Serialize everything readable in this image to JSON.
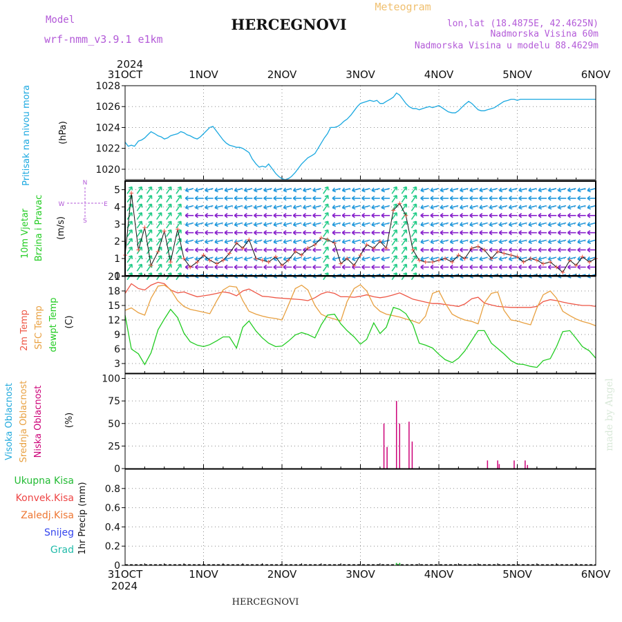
{
  "header": {
    "model_label": "Model",
    "model_name": "wrf-nmm_v3.9.1 e1km",
    "title": "HERCEGNOVI",
    "meteogram_label": "Meteogram",
    "lonlat": "lon,lat (18.4875E, 42.4625N)",
    "altitude": "Nadmorska Visina 60m",
    "model_altitude": "Nadmorska Visina u modelu 88.4629m"
  },
  "footer": {
    "station": "HERCEGNOVI",
    "watermark": "made by Angel"
  },
  "time_axis": {
    "year": "2024",
    "days": [
      "31OCT",
      "1NOV",
      "2NOV",
      "3NOV",
      "4NOV",
      "5NOV",
      "6NOV"
    ]
  },
  "colors": {
    "pressure": "#1aa8e0",
    "temp2m": "#ee5544",
    "sfc": "#e8a040",
    "dew": "#22cc22",
    "wind_calm": "#8822cc",
    "wind_light": "#2299dd",
    "wind_mod": "#22cc88",
    "cloud_low": "#cc0077",
    "cloud_mid": "#e8a040",
    "cloud_high": "#22aadd"
  },
  "chart_data": [
    {
      "type": "line",
      "panel": "pressure",
      "title": "",
      "ylabel_name": "Pritisak na nivou mora",
      "ylabel_unit": "(hPa)",
      "ylim": [
        1019,
        1028
      ],
      "yticks": [
        1020,
        1022,
        1024,
        1026,
        1028
      ],
      "x": [
        0,
        0.04,
        0.08,
        0.12,
        0.17,
        0.21,
        0.25,
        0.29,
        0.33,
        0.38,
        0.42,
        0.46,
        0.5,
        0.54,
        0.58,
        0.62,
        0.67,
        0.71,
        0.75,
        0.79,
        0.83,
        0.88,
        0.92,
        0.96,
        1.0,
        1.04,
        1.08,
        1.12,
        1.17,
        1.21,
        1.25,
        1.29,
        1.33,
        1.38,
        1.42,
        1.46,
        1.5,
        1.54,
        1.58,
        1.62,
        1.67,
        1.71,
        1.75,
        1.79,
        1.83,
        1.88,
        1.92,
        1.96,
        2.0,
        2.04,
        2.08,
        2.12,
        2.17,
        2.21,
        2.25,
        2.29,
        2.33,
        2.38,
        2.42,
        2.46,
        2.5,
        2.54,
        2.58,
        2.62,
        2.67,
        2.71,
        2.75,
        2.79,
        2.83,
        2.88,
        2.92,
        2.96,
        3.0,
        3.04,
        3.08,
        3.12,
        3.17,
        3.21,
        3.25,
        3.29,
        3.33,
        3.38,
        3.42,
        3.46,
        3.5,
        3.54,
        3.58,
        3.62,
        3.67,
        3.71,
        3.75,
        3.79,
        3.83,
        3.88,
        3.92,
        3.96,
        4.0,
        4.04,
        4.08,
        4.12,
        4.17,
        4.21,
        4.25,
        4.29,
        4.33,
        4.38,
        4.42,
        4.46,
        4.5,
        4.54,
        4.58,
        4.62,
        4.67,
        4.71,
        4.75,
        4.79,
        4.83,
        4.88,
        4.92,
        4.96,
        5.0,
        5.04,
        5.08,
        5.12,
        5.17,
        5.21,
        5.25,
        5.29,
        5.33,
        5.38,
        5.42,
        5.46,
        5.5,
        5.54,
        5.58,
        5.62,
        5.67,
        5.71,
        5.75,
        5.79,
        5.83,
        5.88,
        5.92,
        5.96,
        6.0
      ],
      "series": [
        {
          "values": [
            1022.6,
            1022.2,
            1022.3,
            1022.2,
            1022.7,
            1022.8,
            1023.0,
            1023.3,
            1023.6,
            1023.4,
            1023.2,
            1023.1,
            1022.9,
            1023.0,
            1023.2,
            1023.3,
            1023.4,
            1023.6,
            1023.5,
            1023.3,
            1023.2,
            1023.0,
            1022.9,
            1023.1,
            1023.4,
            1023.7,
            1024.0,
            1024.1,
            1023.6,
            1023.2,
            1022.8,
            1022.5,
            1022.3,
            1022.2,
            1022.1,
            1022.1,
            1022.0,
            1021.8,
            1021.6,
            1021.0,
            1020.5,
            1020.2,
            1020.3,
            1020.2,
            1020.5,
            1020.0,
            1019.6,
            1019.3,
            1019.1,
            1019.0,
            1019.1,
            1019.3,
            1019.7,
            1020.1,
            1020.5,
            1020.8,
            1021.1,
            1021.3,
            1021.5,
            1022.0,
            1022.5,
            1023.0,
            1023.4,
            1024.0,
            1024.0,
            1024.1,
            1024.3,
            1024.6,
            1024.8,
            1025.2,
            1025.6,
            1026.0,
            1026.3,
            1026.4,
            1026.5,
            1026.6,
            1026.5,
            1026.6,
            1026.3,
            1026.3,
            1026.5,
            1026.7,
            1026.9,
            1027.3,
            1027.1,
            1026.7,
            1026.3,
            1026.0,
            1025.8,
            1025.8,
            1025.7,
            1025.8,
            1025.9,
            1026.0,
            1025.9,
            1026.0,
            1026.1,
            1025.9,
            1025.7,
            1025.5,
            1025.4,
            1025.4,
            1025.6,
            1025.9,
            1026.2,
            1026.5,
            1026.3,
            1026.0,
            1025.7,
            1025.6,
            1025.6,
            1025.7,
            1025.8,
            1025.9,
            1026.1,
            1026.3,
            1026.5,
            1026.6,
            1026.7,
            1026.7,
            1026.6,
            1026.7,
            1026.7,
            1026.7,
            1026.7,
            1026.7,
            1026.7,
            1026.7,
            1026.7,
            1026.7,
            1026.7,
            1026.7,
            1026.7,
            1026.7,
            1026.7,
            1026.7,
            1026.7,
            1026.7,
            1026.7,
            1026.7,
            1026.7,
            1026.7,
            1026.7,
            1026.7,
            1026.7
          ]
        }
      ]
    },
    {
      "type": "scatter",
      "panel": "wind",
      "title": "",
      "ylabel_name": "10m Vjetar",
      "ylabel_name2": "Brzina i Pravac",
      "ylabel_unit": "(m/s)",
      "compass": {
        "n": "N",
        "s": "S",
        "w": "W",
        "e": "E"
      },
      "ylim": [
        0,
        5.5
      ],
      "yticks": [
        0,
        1,
        2,
        3,
        4,
        5
      ],
      "x": [
        0,
        0.08,
        0.17,
        0.25,
        0.33,
        0.42,
        0.5,
        0.58,
        0.67,
        0.75,
        0.83,
        0.92,
        1.0,
        1.08,
        1.17,
        1.25,
        1.33,
        1.42,
        1.5,
        1.58,
        1.67,
        1.75,
        1.83,
        1.92,
        2.0,
        2.08,
        2.17,
        2.25,
        2.33,
        2.42,
        2.5,
        2.58,
        2.67,
        2.75,
        2.83,
        2.92,
        3.0,
        3.08,
        3.17,
        3.25,
        3.33,
        3.42,
        3.5,
        3.58,
        3.67,
        3.75,
        3.83,
        3.92,
        4.0,
        4.08,
        4.17,
        4.25,
        4.33,
        4.42,
        4.5,
        4.58,
        4.67,
        4.75,
        4.83,
        4.92,
        5.0,
        5.08,
        5.17,
        5.25,
        5.33,
        5.42,
        5.5,
        5.58,
        5.67,
        5.75,
        5.83,
        5.92,
        6.0
      ],
      "series": [
        {
          "values": [
            1.2,
            4.8,
            1.5,
            2.8,
            0.6,
            1.4,
            2.6,
            0.8,
            2.7,
            1.0,
            0.5,
            0.8,
            1.2,
            0.9,
            0.7,
            0.9,
            1.3,
            1.9,
            1.6,
            2.1,
            1.0,
            0.9,
            0.8,
            1.1,
            0.6,
            0.9,
            1.4,
            1.2,
            1.6,
            1.8,
            2.2,
            2.1,
            1.9,
            0.7,
            1.0,
            0.6,
            1.2,
            1.8,
            1.6,
            2.0,
            1.6,
            3.8,
            4.2,
            3.5,
            1.5,
            0.9,
            0.8,
            0.8,
            0.9,
            1.0,
            0.8,
            1.2,
            1.0,
            1.6,
            1.7,
            1.5,
            1.0,
            1.4,
            1.3,
            1.2,
            1.1,
            0.8,
            1.0,
            0.9,
            0.7,
            0.8,
            0.5,
            0.2,
            0.9,
            0.6,
            1.1,
            0.8,
            1.0
          ]
        }
      ]
    },
    {
      "type": "line",
      "panel": "temperature",
      "title": "",
      "ylabels": [
        "2m Temp",
        "SFC Temp",
        "dewpt Temp"
      ],
      "ylabel_unit": "(C)",
      "ylim": [
        1,
        21
      ],
      "yticks": [
        3,
        6,
        9,
        12,
        15,
        18,
        21
      ],
      "x": [
        0,
        0.08,
        0.17,
        0.25,
        0.33,
        0.42,
        0.5,
        0.58,
        0.67,
        0.75,
        0.83,
        0.92,
        1.0,
        1.08,
        1.17,
        1.25,
        1.33,
        1.42,
        1.5,
        1.58,
        1.67,
        1.75,
        1.83,
        1.92,
        2.0,
        2.08,
        2.17,
        2.25,
        2.33,
        2.42,
        2.5,
        2.58,
        2.67,
        2.75,
        2.83,
        2.92,
        3.0,
        3.08,
        3.17,
        3.25,
        3.33,
        3.42,
        3.5,
        3.58,
        3.67,
        3.75,
        3.83,
        3.92,
        4.0,
        4.08,
        4.17,
        4.25,
        4.33,
        4.42,
        4.5,
        4.58,
        4.67,
        4.75,
        4.83,
        4.92,
        5.0,
        5.08,
        5.17,
        5.25,
        5.33,
        5.42,
        5.5,
        5.58,
        5.67,
        5.75,
        5.83,
        5.92,
        6.0
      ],
      "series": [
        {
          "name": "2m Temp",
          "values": [
            17.5,
            19.5,
            18.5,
            18.2,
            19.2,
            19.8,
            19.5,
            18.2,
            17.6,
            17.8,
            17.3,
            16.8,
            17.0,
            17.2,
            17.5,
            17.8,
            17.6,
            17.0,
            18.0,
            18.4,
            17.6,
            16.9,
            16.8,
            16.6,
            16.5,
            16.4,
            16.3,
            16.2,
            16.0,
            16.6,
            17.4,
            17.8,
            17.5,
            16.8,
            16.8,
            16.7,
            16.9,
            17.2,
            16.8,
            16.6,
            16.8,
            17.2,
            17.6,
            17.0,
            16.3,
            16.0,
            15.7,
            15.4,
            15.4,
            15.2,
            15.0,
            14.8,
            15.3,
            16.4,
            16.7,
            15.5,
            15.1,
            14.8,
            14.7,
            14.6,
            14.6,
            14.6,
            14.6,
            14.8,
            15.8,
            16.2,
            16.0,
            15.7,
            15.4,
            15.2,
            15.0,
            15.0,
            14.8
          ]
        },
        {
          "name": "SFC Temp",
          "values": [
            14.0,
            14.5,
            13.5,
            13.0,
            16.5,
            19.0,
            19.2,
            18.3,
            16.0,
            14.8,
            14.2,
            13.9,
            13.6,
            13.3,
            16.0,
            18.2,
            19.0,
            18.8,
            16.0,
            13.8,
            13.2,
            12.8,
            12.5,
            12.3,
            12.0,
            15.0,
            18.5,
            19.2,
            18.2,
            15.0,
            13.2,
            12.6,
            12.2,
            11.8,
            15.8,
            18.5,
            19.3,
            18.0,
            15.0,
            13.8,
            13.2,
            12.9,
            12.6,
            12.2,
            11.8,
            11.3,
            12.8,
            17.5,
            18.0,
            15.5,
            13.2,
            12.5,
            12.0,
            11.7,
            11.2,
            15.5,
            17.5,
            17.8,
            14.0,
            12.0,
            11.8,
            11.4,
            11.0,
            14.5,
            17.2,
            18.0,
            16.5,
            13.8,
            12.9,
            12.2,
            11.7,
            11.3,
            10.8
          ]
        },
        {
          "name": "dewpt Temp",
          "values": [
            13.0,
            6.0,
            5.0,
            2.8,
            5.2,
            10.0,
            12.2,
            14.2,
            12.5,
            9.3,
            7.5,
            6.8,
            6.5,
            6.9,
            7.7,
            8.5,
            8.5,
            6.2,
            10.5,
            11.8,
            9.7,
            8.3,
            7.2,
            6.5,
            6.6,
            7.6,
            8.9,
            9.4,
            9.0,
            8.3,
            11.0,
            13.0,
            13.2,
            11.2,
            9.8,
            8.5,
            7.0,
            8.0,
            11.4,
            9.2,
            10.5,
            14.6,
            14.2,
            13.3,
            11.0,
            7.2,
            6.8,
            6.2,
            4.9,
            3.8,
            3.2,
            4.1,
            5.6,
            7.8,
            9.8,
            9.8,
            7.2,
            6.1,
            5.0,
            3.6,
            2.9,
            2.8,
            2.4,
            2.2,
            3.6,
            4.0,
            6.5,
            9.6,
            9.8,
            8.2,
            6.5,
            5.6,
            4.1
          ]
        }
      ]
    },
    {
      "type": "bar",
      "panel": "cloud",
      "title": "",
      "ylabels": [
        "Visoka Oblacnost",
        "Srednja Oblacnost",
        "Niska Oblacnost"
      ],
      "ylabel_unit": "(%)",
      "ylim": [
        0,
        105
      ],
      "yticks": [
        0,
        25,
        50,
        75,
        100
      ],
      "series": [
        {
          "name": "Niska Oblacnost",
          "x": [
            3.3,
            3.34,
            3.46,
            3.5,
            3.62,
            3.66,
            4.62,
            4.75,
            4.77,
            4.96,
            5.1,
            5.13
          ],
          "values": [
            50,
            24,
            75,
            50,
            52,
            30,
            9,
            9,
            5,
            9,
            9,
            4
          ]
        }
      ]
    },
    {
      "type": "bar",
      "panel": "precip",
      "title": "",
      "ylabels": [
        "Ukupna Kisa",
        "Konvek.Kisa",
        "Zaledj.Kisa",
        "Snijeg",
        "Grad"
      ],
      "ylabel_unit": "1hr Precip (mm)",
      "ylim": [
        0,
        1.0
      ],
      "yticks": [
        0,
        0.2,
        0.4,
        0.6,
        0.8
      ],
      "series": [
        {
          "name": "Ukupna Kisa",
          "x": [
            3.46,
            3.5
          ],
          "values": [
            0.01,
            0.01
          ]
        }
      ]
    }
  ]
}
